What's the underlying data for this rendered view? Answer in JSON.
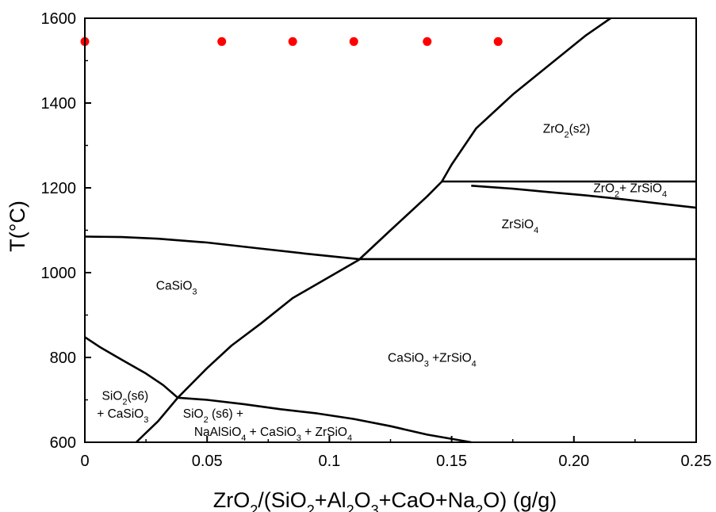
{
  "chart_data": {
    "type": "line",
    "xlabel": {
      "parts": [
        [
          "ZrO",
          ""
        ],
        [
          "2",
          "sub"
        ],
        [
          "/(SiO",
          ""
        ],
        [
          "2",
          "sub"
        ],
        [
          "+Al",
          ""
        ],
        [
          "2",
          "sub"
        ],
        [
          "O",
          ""
        ],
        [
          "3",
          "sub"
        ],
        [
          "+CaO+Na",
          ""
        ],
        [
          "2",
          "sub"
        ],
        [
          "O) (g/g)",
          ""
        ]
      ]
    },
    "ylabel": "T(°C)",
    "xlim": [
      0,
      0.25
    ],
    "ylim": [
      600,
      1600
    ],
    "x_ticks": [
      {
        "value": 0,
        "label": "0"
      },
      {
        "value": 0.05,
        "label": "0.05"
      },
      {
        "value": 0.1,
        "label": "0.1"
      },
      {
        "value": 0.15,
        "label": "0.15"
      },
      {
        "value": 0.2,
        "label": "0.20"
      },
      {
        "value": 0.25,
        "label": "0.25"
      }
    ],
    "y_ticks": [
      600,
      800,
      1000,
      1200,
      1400,
      1600
    ],
    "grid": false,
    "points": {
      "color": "#ff0000",
      "x": [
        0,
        0.056,
        0.085,
        0.11,
        0.14,
        0.169
      ],
      "y": [
        1545,
        1545,
        1545,
        1545,
        1545,
        1545
      ]
    },
    "boundaries": [
      {
        "name": "zro2-solubility",
        "x": [
          0.021,
          0.03,
          0.038,
          0.05,
          0.06,
          0.072,
          0.085,
          0.1,
          0.112,
          0.125,
          0.14,
          0.146,
          0.15,
          0.16,
          0.175,
          0.19,
          0.205,
          0.215
        ],
        "y": [
          600,
          650,
          705,
          775,
          828,
          880,
          940,
          990,
          1030,
          1100,
          1180,
          1215,
          1255,
          1340,
          1420,
          1490,
          1560,
          1600
        ]
      },
      {
        "name": "casio3-upper",
        "x": [
          0,
          0.015,
          0.03,
          0.05,
          0.07,
          0.09,
          0.112
        ],
        "y": [
          1085,
          1084,
          1080,
          1071,
          1058,
          1045,
          1032
        ]
      },
      {
        "name": "zrsio4-1030",
        "x": [
          0.112,
          0.25
        ],
        "y": [
          1032,
          1032
        ]
      },
      {
        "name": "zrsio4-1215",
        "x": [
          0.146,
          0.25
        ],
        "y": [
          1215,
          1215
        ]
      },
      {
        "name": "zro2-zrsio4",
        "x": [
          0.158,
          0.175,
          0.19,
          0.205,
          0.22,
          0.235,
          0.25
        ],
        "y": [
          1205,
          1198,
          1190,
          1182,
          1173,
          1163,
          1153
        ]
      },
      {
        "name": "sio2-left",
        "x": [
          0,
          0.006,
          0.015,
          0.025,
          0.032,
          0.038
        ],
        "y": [
          848,
          825,
          795,
          762,
          735,
          705
        ]
      },
      {
        "name": "sio2-bottom",
        "x": [
          0.038,
          0.05,
          0.065,
          0.08,
          0.095,
          0.11,
          0.125,
          0.14,
          0.158
        ],
        "y": [
          705,
          700,
          690,
          678,
          668,
          655,
          638,
          618,
          600
        ]
      }
    ],
    "annotations": [
      {
        "x": 0.197,
        "y": 1330,
        "parts": [
          [
            "ZrO",
            ""
          ],
          [
            "2",
            "sub"
          ],
          [
            "(s2)",
            ""
          ]
        ]
      },
      {
        "x": 0.223,
        "y": 1190,
        "parts": [
          [
            "ZrO",
            ""
          ],
          [
            "2",
            "sub"
          ],
          [
            "+ ZrSiO",
            ""
          ],
          [
            "4",
            "sub"
          ]
        ]
      },
      {
        "x": 0.178,
        "y": 1105,
        "parts": [
          [
            "ZrSiO",
            ""
          ],
          [
            "4",
            "sub"
          ]
        ]
      },
      {
        "x": 0.0375,
        "y": 960,
        "parts": [
          [
            "CaSiO",
            ""
          ],
          [
            "3",
            "sub"
          ]
        ]
      },
      {
        "x": 0.142,
        "y": 790,
        "parts": [
          [
            "CaSiO",
            ""
          ],
          [
            "3",
            "sub"
          ],
          [
            " +ZrSiO",
            ""
          ],
          [
            "4",
            "sub"
          ]
        ]
      },
      {
        "x": 0.0165,
        "y": 700,
        "parts": [
          [
            "SiO",
            ""
          ],
          [
            "2",
            "sub"
          ],
          [
            "(s6)",
            ""
          ]
        ]
      },
      {
        "x": 0.0155,
        "y": 658,
        "parts": [
          [
            "+ CaSiO",
            ""
          ],
          [
            "3",
            "sub"
          ]
        ]
      },
      {
        "x": 0.0525,
        "y": 658,
        "parts": [
          [
            "SiO",
            ""
          ],
          [
            "2",
            "sub"
          ],
          [
            " (s6) +",
            ""
          ]
        ]
      },
      {
        "x": 0.077,
        "y": 615,
        "parts": [
          [
            "NaAlSiO",
            ""
          ],
          [
            "4",
            "sub"
          ],
          [
            " + CaSiO",
            ""
          ],
          [
            "3",
            "sub"
          ],
          [
            " + ZrSiO",
            ""
          ],
          [
            "4",
            "sub"
          ]
        ]
      }
    ]
  }
}
